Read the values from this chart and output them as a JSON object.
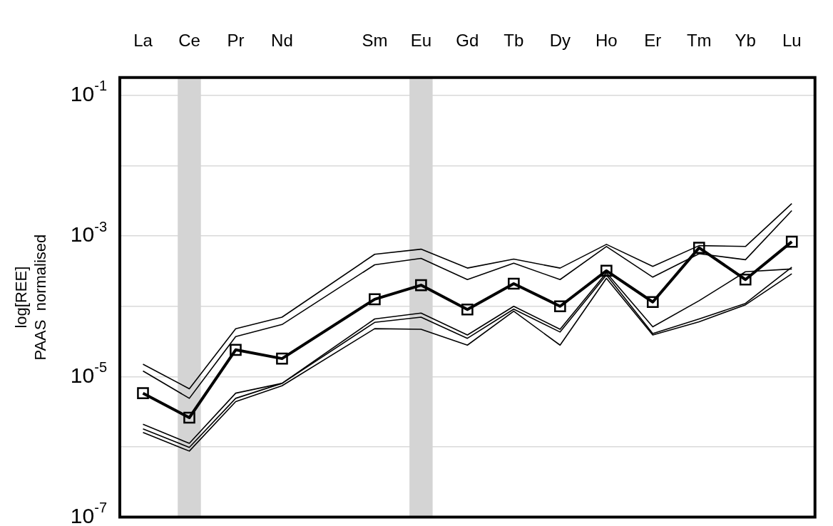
{
  "chart_data": {
    "type": "line",
    "ylabel": "log[REE]\nPAAS  normalised",
    "categories": [
      "La",
      "Ce",
      "Pr",
      "Nd",
      null,
      "Sm",
      "Eu",
      "Gd",
      "Tb",
      "Dy",
      "Ho",
      "Er",
      "Tm",
      "Yb",
      "Lu"
    ],
    "series": [
      {
        "color": "#000000",
        "marker": "none",
        "values": [
          1.5e-05,
          6.7e-06,
          4.8e-05,
          7e-05,
          null,
          0.00055,
          0.00065,
          0.00035,
          0.00047,
          0.00035,
          0.00076,
          0.00037,
          0.00073,
          0.00071,
          0.0029
        ]
      },
      {
        "color": "#000000",
        "marker": "none",
        "values": [
          1.2e-05,
          4.9e-06,
          3.7e-05,
          5.5e-05,
          null,
          0.00039,
          0.00048,
          0.00024,
          0.00041,
          0.00024,
          0.00071,
          0.00026,
          0.00056,
          0.00046,
          0.0023
        ]
      },
      {
        "color": "#000000",
        "marker": "none",
        "values": [
          2.1e-06,
          1.12e-06,
          5.8e-06,
          8e-06,
          null,
          6.6e-05,
          8e-05,
          3.9e-05,
          0.0001,
          4.7e-05,
          0.0003,
          5.1e-05,
          0.00012,
          0.00031,
          0.00034
        ]
      },
      {
        "color": "#000000",
        "marker": "none",
        "values": [
          1.8e-06,
          9.8e-07,
          4.9e-06,
          8e-06,
          null,
          5.9e-05,
          7e-05,
          3.5e-05,
          9.1e-05,
          4.3e-05,
          0.00028,
          4.1e-05,
          6.6e-05,
          0.00011,
          0.00036
        ]
      },
      {
        "color": "#000000",
        "marker": "none",
        "values": [
          1.6e-06,
          8.7e-07,
          4.4e-06,
          7.4e-06,
          null,
          4.8e-05,
          4.7e-05,
          2.8e-05,
          8.5e-05,
          2.8e-05,
          0.00025,
          3.9e-05,
          6e-05,
          0.000105,
          0.00029
        ]
      },
      {
        "color": "#000000",
        "marker": "square",
        "values": [
          5.8e-06,
          2.6e-06,
          2.4e-05,
          1.8e-05,
          null,
          0.000126,
          0.0002,
          9e-05,
          0.00021,
          0.0001,
          0.00032,
          0.000115,
          0.00068,
          0.00024,
          0.00083
        ]
      }
    ],
    "log": "y",
    "ylim": [
      1e-07,
      0.18
    ],
    "yticks": [
      {
        "value": 1e-07,
        "label": "10$^{-7}$"
      },
      {
        "value": 1e-06,
        "label": null
      },
      {
        "value": 1e-05,
        "label": "10$^{-5}$"
      },
      {
        "value": 0.0001,
        "label": null
      },
      {
        "value": 0.001,
        "label": "10$^{-3}$"
      },
      {
        "value": 0.01,
        "label": null
      },
      {
        "value": 0.1,
        "label": "10$^{-1}$"
      }
    ],
    "grid": "y",
    "legend": false,
    "bands": [
      {
        "axis": "x",
        "from": "Ce",
        "to": "Ce",
        "color": "#d4d4d4"
      },
      {
        "axis": "x",
        "from": "Eu",
        "to": "Eu",
        "color": "#d4d4d4"
      }
    ]
  }
}
